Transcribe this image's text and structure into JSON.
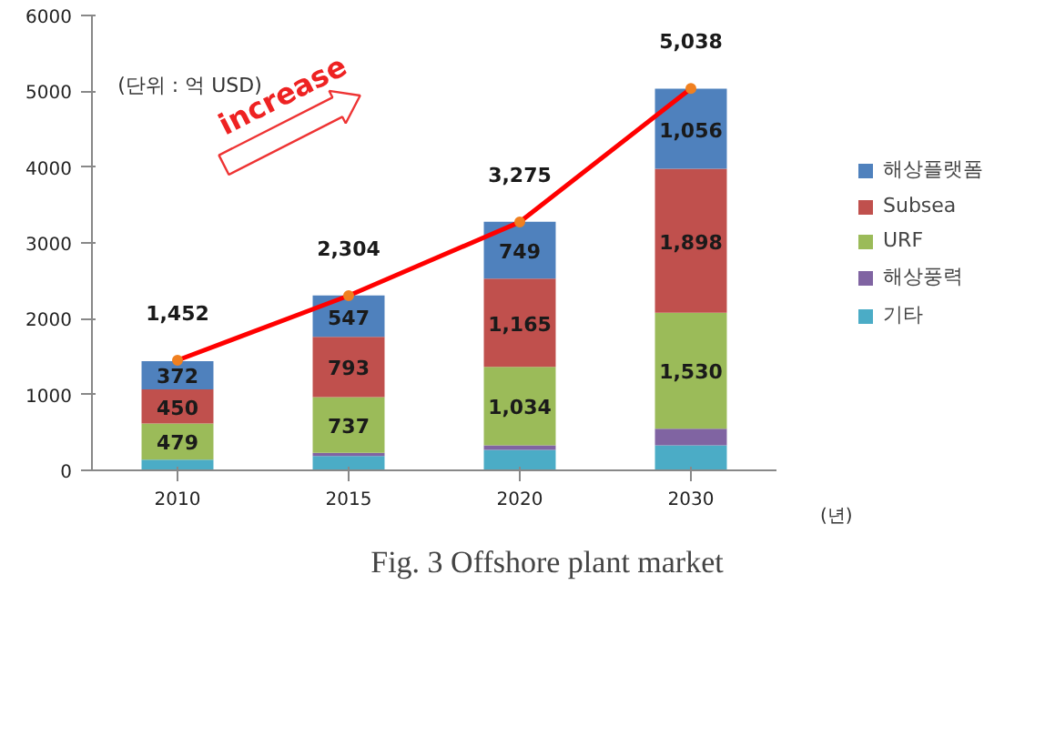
{
  "chart_data": {
    "type": "bar",
    "stacked": true,
    "categories": [
      "2010",
      "2015",
      "2020",
      "2030"
    ],
    "xlabel": "(년)",
    "ylim": [
      0,
      6000
    ],
    "yticks": [
      0,
      1000,
      2000,
      3000,
      4000,
      5000,
      6000
    ],
    "grid": false,
    "legend": "right",
    "series": [
      {
        "name": "기타",
        "color": "#4bacc6",
        "values": [
          140,
          190,
          270,
          330
        ],
        "value_labels": [
          null,
          null,
          null,
          null
        ]
      },
      {
        "name": "해상풍력",
        "color": "#8064a2",
        "values": [
          null,
          40,
          60,
          220
        ],
        "value_labels": [
          null,
          null,
          null,
          null
        ]
      },
      {
        "name": "URF",
        "color": "#9bbb59",
        "values": [
          479,
          737,
          1034,
          1530
        ],
        "value_labels": [
          "479",
          "737",
          "1,034",
          "1,530"
        ]
      },
      {
        "name": "Subsea",
        "color": "#c0504d",
        "values": [
          450,
          793,
          1165,
          1898
        ],
        "value_labels": [
          "450",
          "793",
          "1,165",
          "1,898"
        ]
      },
      {
        "name": "해상플랫폼",
        "color": "#4f81bd",
        "values": [
          372,
          547,
          749,
          1056
        ],
        "value_labels": [
          "372",
          "547",
          "749",
          "1,056"
        ]
      },
      {
        "type": "line",
        "color": "#ff0000",
        "marker": "circle",
        "values": [
          1452,
          2304,
          3275,
          5038
        ],
        "value_labels": [
          "1,452",
          "2,304",
          "3,275",
          "5,038"
        ]
      }
    ],
    "annotations": [
      "(단위 : 억 USD)",
      "increase",
      "Fig. 3 Offshore plant market"
    ]
  }
}
